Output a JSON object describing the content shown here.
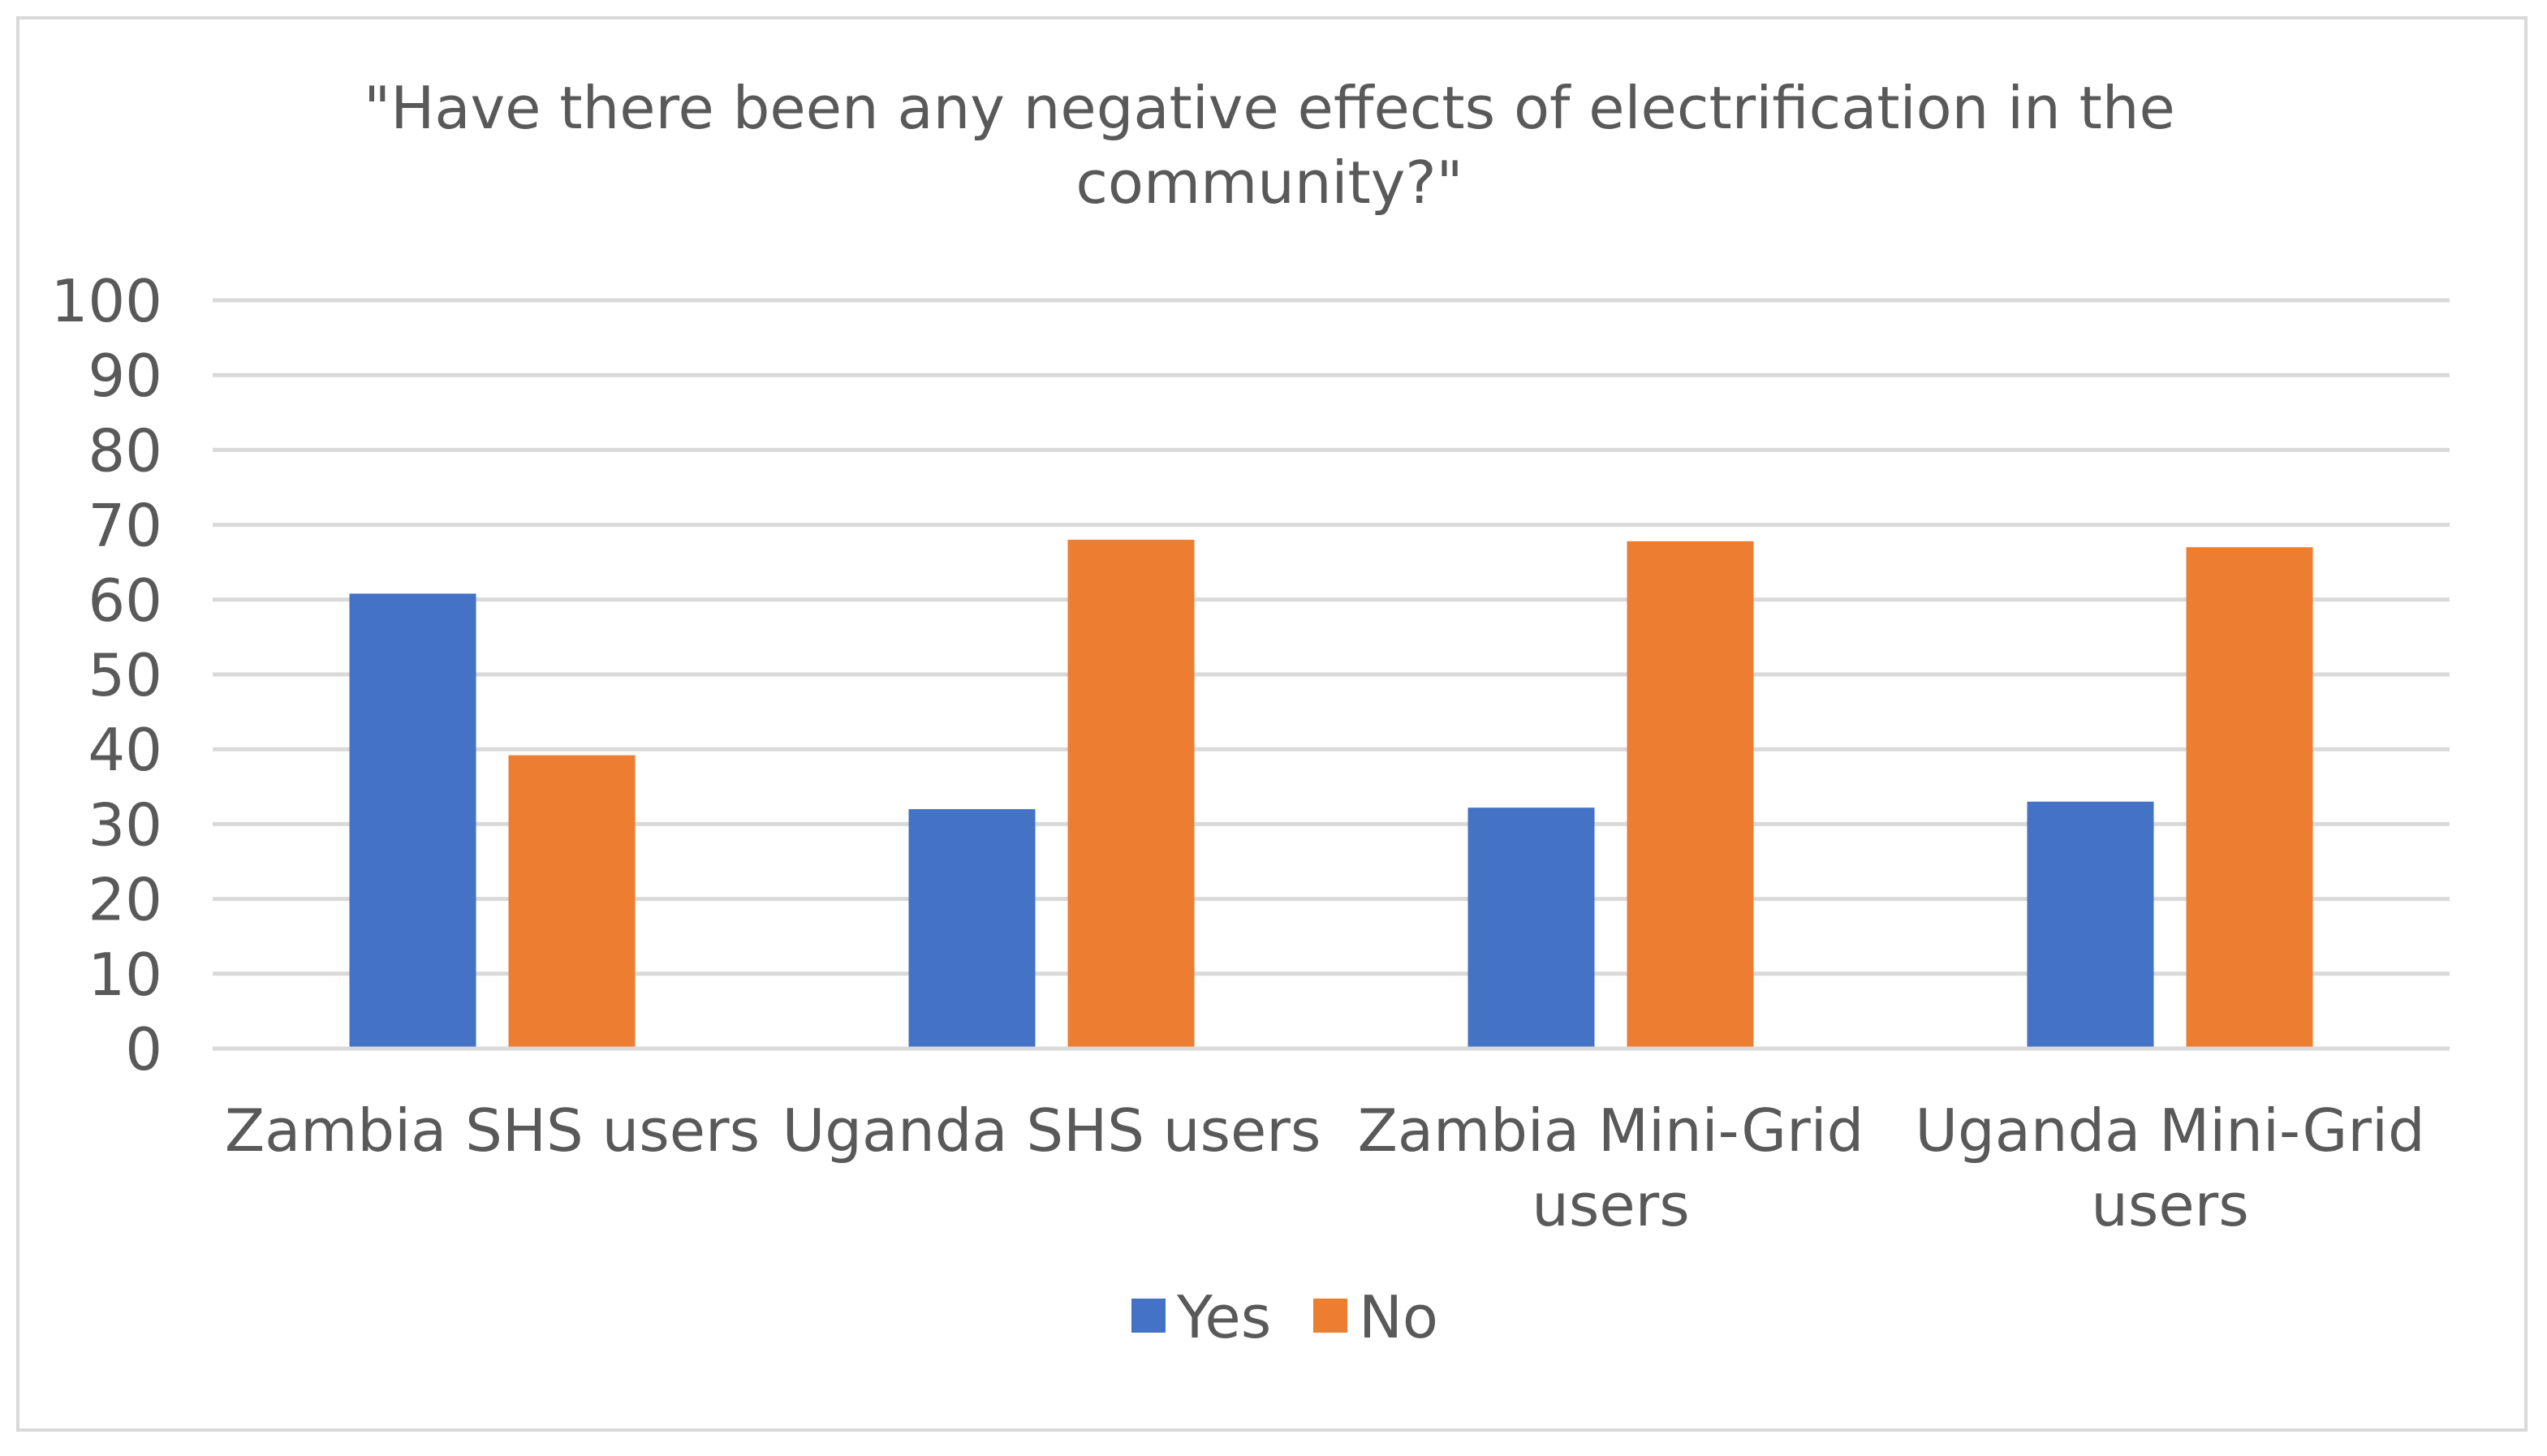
{
  "chart_data": {
    "type": "bar",
    "title": "\"Have there been any negative effects of electrification in the community?\"",
    "title_lines": [
      "\"Have there been any negative effects of electrification in the",
      "community?\""
    ],
    "categories": [
      "Zambia SHS users",
      "Uganda SHS users",
      "Zambia Mini-Grid users",
      "Uganda Mini-Grid users"
    ],
    "category_lines": [
      [
        "Zambia SHS users"
      ],
      [
        "Uganda SHS users"
      ],
      [
        "Zambia Mini-Grid",
        "users"
      ],
      [
        "Uganda Mini-Grid",
        "users"
      ]
    ],
    "series": [
      {
        "name": "Yes",
        "color": "#4472c4",
        "values": [
          60.8,
          32.0,
          32.2,
          33.0
        ]
      },
      {
        "name": "No",
        "color": "#ed7d31",
        "values": [
          39.2,
          68.0,
          67.8,
          67.0
        ]
      }
    ],
    "yticks": [
      0,
      10,
      20,
      30,
      40,
      50,
      60,
      70,
      80,
      90,
      100
    ],
    "ylim": [
      0,
      100
    ],
    "xlabel": "",
    "ylabel": "",
    "grid": true,
    "legend_position": "bottom"
  }
}
